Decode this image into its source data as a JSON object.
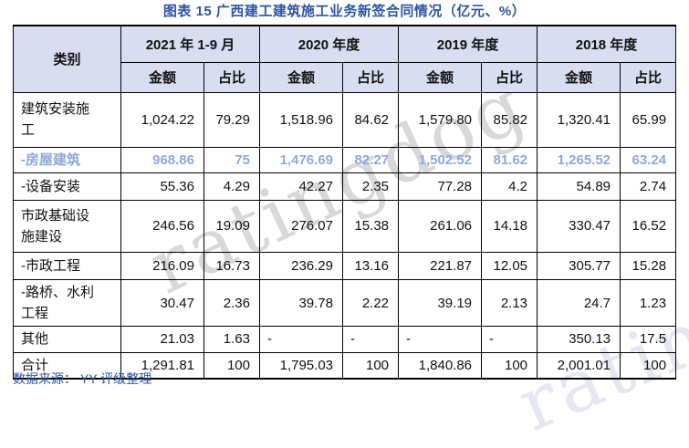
{
  "title": "图表 15 广西建工建筑施工业务新签合同情况（亿元、%）",
  "source_note": "数据来源： YY 评级整理",
  "watermark": "ratingdog",
  "colors": {
    "accent_blue": "#2b55a2",
    "header_bg": "#d9ddf0",
    "highlight_row_text": "#8ea9db",
    "watermark_gray": "#d8d8d8"
  },
  "table": {
    "col_category": "类别",
    "periods": [
      "2021 年 1-9 月",
      "2020 年度",
      "2019 年度",
      "2018 年度"
    ],
    "sub_amount": "金额",
    "sub_share": "占比",
    "rows": [
      {
        "label": "建筑安装施工",
        "values": [
          "1,024.22",
          "79.29",
          "1,518.96",
          "84.62",
          "1,579.80",
          "85.82",
          "1,320.41",
          "65.99"
        ]
      },
      {
        "label": "-房屋建筑",
        "highlight": true,
        "values": [
          "968.86",
          "75",
          "1,476.69",
          "82.27",
          "1,502.52",
          "81.62",
          "1,265.52",
          "63.24"
        ]
      },
      {
        "label": "-设备安装",
        "values": [
          "55.36",
          "4.29",
          "42.27",
          "2.35",
          "77.28",
          "4.2",
          "54.89",
          "2.74"
        ]
      },
      {
        "label": "市政基础设施建设",
        "values": [
          "246.56",
          "19.09",
          "276.07",
          "15.38",
          "261.06",
          "14.18",
          "330.47",
          "16.52"
        ]
      },
      {
        "label": "-市政工程",
        "values": [
          "216.09",
          "16.73",
          "236.29",
          "13.16",
          "221.87",
          "12.05",
          "305.77",
          "15.28"
        ]
      },
      {
        "label": "-路桥、水利工程",
        "values": [
          "30.47",
          "2.36",
          "39.78",
          "2.22",
          "39.19",
          "2.13",
          "24.7",
          "1.23"
        ]
      },
      {
        "label": "其他",
        "values": [
          "21.03",
          "1.63",
          "-",
          "-",
          "-",
          "-",
          "350.13",
          "17.5"
        ]
      },
      {
        "label": "合计",
        "values": [
          "1,291.81",
          "100",
          "1,795.03",
          "100",
          "1,840.86",
          "100",
          "2,001.01",
          "100"
        ]
      }
    ]
  }
}
